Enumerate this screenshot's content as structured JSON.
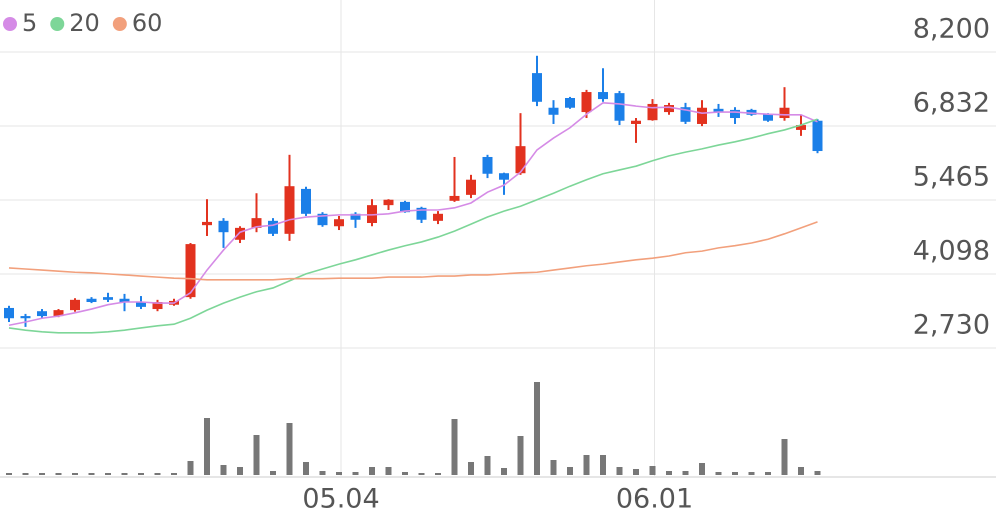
{
  "chart_data": {
    "type": "candlestick",
    "categories": [
      null,
      null,
      null,
      null,
      null,
      null,
      null,
      null,
      null,
      null,
      null,
      null,
      null,
      null,
      null,
      null,
      null,
      null,
      null,
      null,
      "05.04",
      null,
      null,
      null,
      null,
      null,
      null,
      null,
      null,
      null,
      null,
      null,
      null,
      null,
      null,
      null,
      null,
      null,
      null,
      "06.01",
      null,
      null,
      null,
      null,
      null,
      null,
      null,
      null,
      null,
      null
    ],
    "open": [
      3470,
      3320,
      3410,
      3320,
      3430,
      3640,
      3670,
      3640,
      3580,
      3450,
      3530,
      3670,
      5000,
      5080,
      4730,
      4950,
      5080,
      4840,
      5670,
      5210,
      4980,
      5210,
      5040,
      5370,
      5430,
      5320,
      5080,
      5450,
      5560,
      6260,
      5960,
      5960,
      7810,
      7170,
      7350,
      7090,
      7460,
      7440,
      6870,
      6940,
      7090,
      7180,
      6870,
      7150,
      7130,
      7130,
      7050,
      6980,
      6760,
      6930
    ],
    "high": [
      3510,
      3360,
      3450,
      3450,
      3650,
      3670,
      3750,
      3730,
      3690,
      3620,
      3640,
      4670,
      5480,
      5130,
      4980,
      5590,
      5130,
      6300,
      5710,
      5240,
      5170,
      5240,
      5480,
      5480,
      5450,
      5340,
      5260,
      6260,
      5930,
      6300,
      5970,
      7070,
      8130,
      7310,
      7370,
      7500,
      7900,
      7480,
      6980,
      7330,
      7260,
      7260,
      7310,
      7240,
      7180,
      7150,
      7070,
      7550,
      7040,
      6960
    ],
    "low": [
      3210,
      3120,
      3280,
      3300,
      3400,
      3560,
      3580,
      3410,
      3450,
      3410,
      3510,
      3640,
      4800,
      4580,
      4670,
      4870,
      4800,
      4710,
      5170,
      4970,
      4910,
      4950,
      4980,
      5280,
      5230,
      5040,
      5020,
      5430,
      5500,
      5870,
      5560,
      5930,
      7200,
      6870,
      7150,
      6980,
      7280,
      6850,
      6520,
      6930,
      7040,
      6870,
      6830,
      7000,
      6870,
      7020,
      6910,
      6930,
      6650,
      6330
    ],
    "close": [
      3280,
      3280,
      3320,
      3430,
      3620,
      3580,
      3620,
      3580,
      3490,
      3580,
      3600,
      4650,
      5060,
      4870,
      4950,
      5130,
      4840,
      5720,
      5210,
      5000,
      5110,
      5100,
      5370,
      5470,
      5240,
      5100,
      5210,
      5540,
      5840,
      5950,
      5840,
      6460,
      7280,
      7040,
      7170,
      7460,
      7330,
      6930,
      6930,
      7240,
      7220,
      6910,
      7170,
      7090,
      6980,
      7040,
      6930,
      7170,
      6850,
      6370
    ],
    "volume": [
      2,
      2,
      2,
      2,
      2,
      2,
      2,
      2,
      2,
      2,
      2,
      14,
      57,
      10,
      8,
      40,
      4,
      52,
      13,
      4,
      3,
      3,
      8,
      8,
      3,
      2,
      2,
      56,
      13,
      19,
      7,
      39,
      93,
      15,
      8,
      20,
      20,
      8,
      6,
      9,
      4,
      4,
      12,
      3,
      3,
      3,
      3,
      36,
      8,
      4
    ],
    "volume_ylim": [
      0,
      100
    ],
    "up_color": "#e2321f",
    "down_color": "#1b7fe8",
    "volume_color": "#777777",
    "series": [
      {
        "name": "5",
        "color": "#d58be6",
        "values": [
          3150,
          3210,
          3280,
          3320,
          3380,
          3450,
          3530,
          3580,
          3580,
          3560,
          3560,
          3750,
          4170,
          4540,
          4870,
          4970,
          5000,
          5100,
          5150,
          5170,
          5190,
          5190,
          5190,
          5210,
          5260,
          5280,
          5280,
          5320,
          5410,
          5610,
          5740,
          5980,
          6390,
          6610,
          6800,
          7050,
          7260,
          7240,
          7200,
          7170,
          7180,
          7130,
          7070,
          7090,
          7090,
          7070,
          7050,
          7040,
          7040,
          6910
        ]
      },
      {
        "name": "20",
        "color": "#7dd698",
        "values": [
          3100,
          3060,
          3030,
          3010,
          3010,
          3010,
          3030,
          3060,
          3100,
          3140,
          3170,
          3280,
          3430,
          3560,
          3670,
          3770,
          3840,
          3970,
          4100,
          4190,
          4280,
          4360,
          4450,
          4540,
          4620,
          4690,
          4780,
          4890,
          5020,
          5150,
          5260,
          5350,
          5470,
          5590,
          5720,
          5840,
          5950,
          6020,
          6090,
          6190,
          6280,
          6350,
          6410,
          6480,
          6540,
          6610,
          6690,
          6760,
          6850,
          6960
        ]
      },
      {
        "name": "60",
        "color": "#f2a07c",
        "values": [
          4210,
          4190,
          4170,
          4150,
          4130,
          4120,
          4100,
          4080,
          4060,
          4040,
          4020,
          4010,
          3990,
          3990,
          3990,
          3990,
          3990,
          4010,
          4010,
          4010,
          4020,
          4020,
          4020,
          4040,
          4040,
          4040,
          4060,
          4060,
          4080,
          4080,
          4100,
          4120,
          4130,
          4170,
          4210,
          4250,
          4280,
          4320,
          4360,
          4390,
          4430,
          4490,
          4520,
          4580,
          4620,
          4670,
          4740,
          4840,
          4950,
          5060
        ]
      }
    ],
    "ylim": [
      2730,
      8200
    ],
    "yticks": [
      {
        "value": 2730,
        "label": "2,730"
      },
      {
        "value": 4098,
        "label": "4,098"
      },
      {
        "value": 5465,
        "label": "5,465"
      },
      {
        "value": 6832,
        "label": "6,832"
      },
      {
        "value": 8200,
        "label": "8,200"
      }
    ],
    "grid": true
  }
}
